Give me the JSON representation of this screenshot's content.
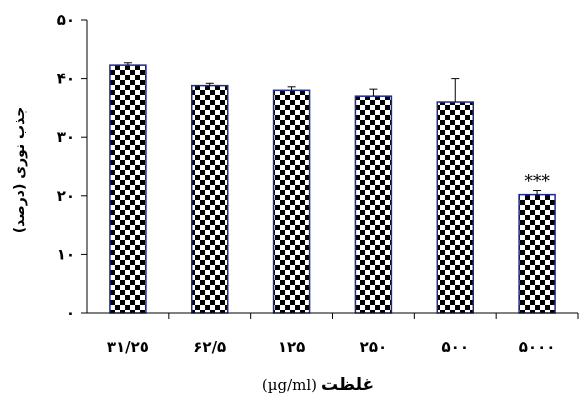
{
  "chart_data": {
    "type": "bar",
    "categories": [
      "٣١/٢٥",
      "۶٢/۵",
      "١٢۵",
      "٢۵٠",
      "۵٠٠",
      "۵٠٠٠"
    ],
    "values": [
      42.3,
      38.8,
      38.0,
      37.0,
      36.0,
      20.2
    ],
    "errors": [
      0.4,
      0.4,
      0.6,
      1.2,
      4.0,
      0.7
    ],
    "annotations": [
      {
        "category_index": 5,
        "text": "***"
      }
    ],
    "ylim": [
      0,
      50
    ],
    "yticks": [
      0,
      10,
      20,
      30,
      40,
      50
    ],
    "ytick_labels": [
      "٠",
      "١٠",
      "٢٠",
      "٣٠",
      "۴٠",
      "۵٠"
    ],
    "ylabel": "جذب نوری (درصد)",
    "xlabel_unit": "(µg/ml)",
    "xlabel_word": "غلظت",
    "grid": false,
    "legend": "none",
    "bar_pattern": "checkerboard",
    "bar_color": "#000000",
    "bar_border_color": "#1e2a8c"
  }
}
